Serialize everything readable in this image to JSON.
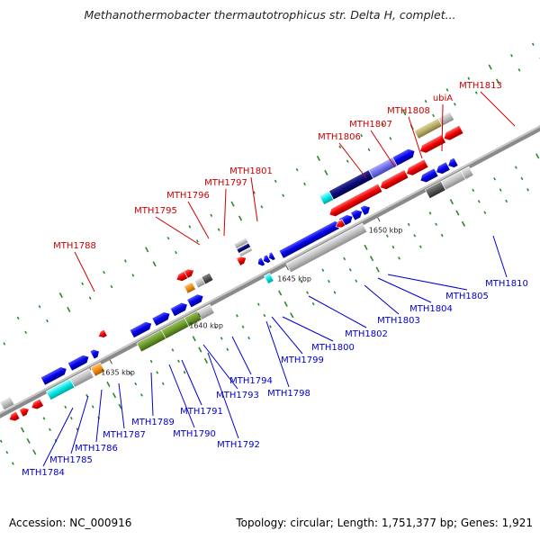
{
  "title": "Methanothermobacter thermautotrophicus str. Delta H, complet...",
  "footer": {
    "accession": "Accession: NC_000916",
    "summary": "Topology: circular; Length: 1,751,377 bp; Genes: 1,921"
  },
  "ticks": [
    "1635 kbp",
    "1640 kbp",
    "1645 kbp",
    "1650 kbp"
  ],
  "labels_top": [
    "MTH1788",
    "MTH1795",
    "MTH1796",
    "MTH1797",
    "MTH1801",
    "MTH1806",
    "MTH1807",
    "MTH1808",
    "ubiA",
    "MTH1813"
  ],
  "labels_bottom": [
    "MTH1784",
    "MTH1785",
    "MTH1786",
    "MTH1787",
    "MTH1789",
    "MTH1790",
    "MTH1791",
    "MTH1792",
    "MTH1793",
    "MTH1794",
    "MTH1798",
    "MTH1799",
    "MTH1800",
    "MTH1802",
    "MTH1803",
    "MTH1804",
    "MTH1805",
    "MTH1810"
  ],
  "colors": {
    "top_label": "#cc0000",
    "bottom_label": "#0000cc",
    "backbone": "#7f7f7f",
    "forward_gene": "#0000ee",
    "reverse_gene": "#ee0000",
    "dot": "#2a8a2a"
  }
}
